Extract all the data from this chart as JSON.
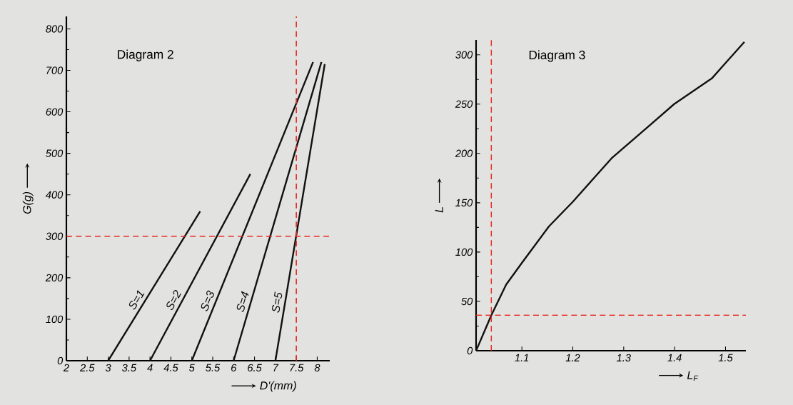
{
  "chart_data": [
    {
      "type": "line",
      "title": "Diagram 2",
      "xlabel": "D'(mm)",
      "ylabel": "G(g)",
      "xlim": [
        2,
        8.3
      ],
      "ylim": [
        0,
        830
      ],
      "xticks": [
        2,
        2.5,
        3,
        3.5,
        4,
        4.5,
        5,
        5.5,
        6,
        6.5,
        7,
        7.5,
        8
      ],
      "yticks": [
        0,
        100,
        200,
        300,
        400,
        500,
        600,
        700,
        800
      ],
      "line_style": "solid",
      "series": [
        {
          "name": "S=1",
          "color": "#111111",
          "x": [
            3,
            5.2
          ],
          "values": [
            0,
            360
          ]
        },
        {
          "name": "S=2",
          "color": "#111111",
          "x": [
            4,
            6.4
          ],
          "values": [
            0,
            450
          ]
        },
        {
          "name": "S=3",
          "color": "#111111",
          "x": [
            5,
            7.9
          ],
          "values": [
            0,
            720
          ]
        },
        {
          "name": "S=4",
          "color": "#111111",
          "x": [
            6,
            8.1
          ],
          "values": [
            0,
            720
          ]
        },
        {
          "name": "S=5",
          "color": "#111111",
          "x": [
            7,
            8.18
          ],
          "values": [
            0,
            715
          ]
        }
      ],
      "ref_lines": [
        {
          "axis": "y",
          "value": 300,
          "color": "#e8281e",
          "line_style": "dashed"
        },
        {
          "axis": "x",
          "value": 7.5,
          "color": "#e8281e",
          "line_style": "dashed"
        }
      ]
    },
    {
      "type": "line",
      "title": "Diagram 3",
      "xlabel": "L$_{F}$",
      "ylabel": "L",
      "xlim": [
        1.01,
        1.54
      ],
      "ylim": [
        0,
        315
      ],
      "xticks": [
        1.1,
        1.2,
        1.3,
        1.4,
        1.5
      ],
      "yticks": [
        0,
        50,
        100,
        150,
        200,
        250,
        300
      ],
      "line_style": "solid",
      "series": [
        {
          "color": "#111111",
          "x": [
            1.01,
            1.04,
            1.069,
            1.1,
            1.153,
            1.2,
            1.276,
            1.35,
            1.399,
            1.473,
            1.537
          ],
          "values": [
            0,
            36,
            67,
            89,
            126,
            151,
            195,
            228,
            250,
            276,
            313
          ]
        }
      ],
      "ref_lines": [
        {
          "axis": "x",
          "value": 1.04,
          "color": "#e8281e",
          "line_style": "dashed"
        },
        {
          "axis": "y",
          "value": 36,
          "color": "#e8281e",
          "line_style": "dashed"
        }
      ]
    }
  ]
}
